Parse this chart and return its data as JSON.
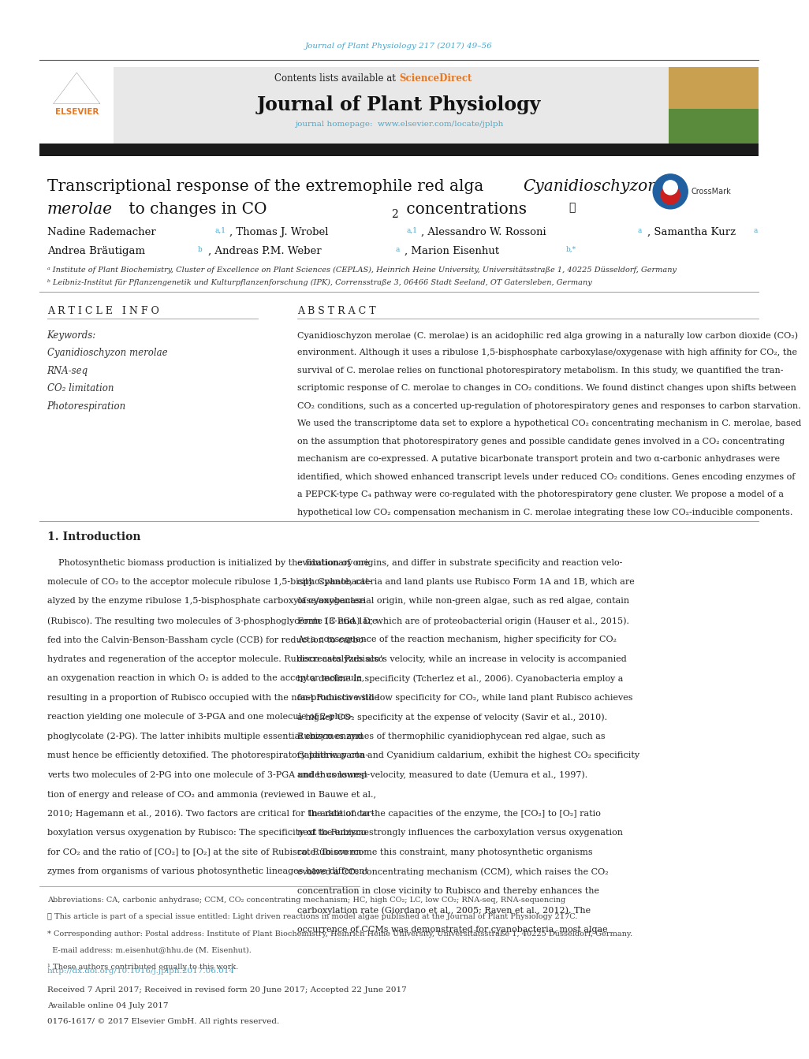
{
  "page_width": 9.92,
  "page_height": 13.23,
  "bg_color": "#ffffff",
  "journal_ref": "Journal of Plant Physiology 217 (2017) 49–56",
  "journal_ref_color": "#4da6c8",
  "header_bg": "#e8e8e8",
  "header_sciencedirect_color": "#e87722",
  "journal_name": "Journal of Plant Physiology",
  "journal_homepage_url": "www.elsevier.com/locate/jplph",
  "journal_homepage_color": "#4da6c8",
  "black_bar_color": "#1a1a1a",
  "keywords": [
    "Cyanidioschyzon merolae",
    "RNA-seq",
    "CO₂ limitation",
    "Photorespiration"
  ],
  "affil_a": "ᵃ Institute of Plant Biochemistry, Cluster of Excellence on Plant Sciences (CEPLAS), Heinrich Heine University, Universitätsstraße 1, 40225 Düsseldorf, Germany",
  "affil_b": "ᵇ Leibniz-Institut für Pflanzengenetik und Kulturpflanzenforschung (IPK), Corrensstraße 3, 06466 Stadt Seeland, OT Gatersleben, Germany",
  "doi_color": "#4da6c8",
  "doi": "http://dx.doi.org/10.1016/j.jplph.2017.06.014",
  "received_text": "Received 7 April 2017; Received in revised form 20 June 2017; Accepted 22 June 2017",
  "available_text": "Available online 04 July 2017",
  "copyright_text": "0176-1617/ © 2017 Elsevier GmbH. All rights reserved.",
  "abstract_lines": [
    "Cyanidioschyzon merolae (C. merolae) is an acidophilic red alga growing in a naturally low carbon dioxide (CO₂)",
    "environment. Although it uses a ribulose 1,5-bisphosphate carboxylase/oxygenase with high affinity for CO₂, the",
    "survival of C. merolae relies on functional photorespiratory metabolism. In this study, we quantified the tran-",
    "scriptomic response of C. merolae to changes in CO₂ conditions. We found distinct changes upon shifts between",
    "CO₂ conditions, such as a concerted up-regulation of photorespiratory genes and responses to carbon starvation.",
    "We used the transcriptome data set to explore a hypothetical CO₂ concentrating mechanism in C. merolae, based",
    "on the assumption that photorespiratory genes and possible candidate genes involved in a CO₂ concentrating",
    "mechanism are co-expressed. A putative bicarbonate transport protein and two α-carbonic anhydrases were",
    "identified, which showed enhanced transcript levels under reduced CO₂ conditions. Genes encoding enzymes of",
    "a PEPCK-type C₄ pathway were co-regulated with the photorespiratory gene cluster. We propose a model of a",
    "hypothetical low CO₂ compensation mechanism in C. merolae integrating these low CO₂-inducible components."
  ],
  "intro_col1_lines": [
    "    Photosynthetic biomass production is initialized by the fixation of one",
    "molecule of CO₂ to the acceptor molecule ribulose 1,5-bisphosphate, cat-",
    "alyzed by the enzyme ribulose 1,5-bisphosphate carboxylase/oxygenase",
    "(Rubisco). The resulting two molecules of 3-phosphoglycerate (3-PGA) are",
    "fed into the Calvin-Benson-Bassham cycle (CCB) for reduction to carbo-",
    "hydrates and regeneration of the acceptor molecule. Rubisco catalyzes also",
    "an oxygenation reaction in which O₂ is added to the acceptor molecule,",
    "resulting in a proportion of Rubisco occupied with the non-productive side",
    "reaction yielding one molecule of 3-PGA and one molecule of 2-phos-",
    "phoglycolate (2-PG). The latter inhibits multiple essential enzymes and",
    "must hence be efficiently detoxified. The photorespiratory pathway con-",
    "verts two molecules of 2-PG into one molecule of 3-PGA under consump-",
    "tion of energy and release of CO₂ and ammonia (reviewed in Bauwe et al.,",
    "2010; Hagemann et al., 2016). Two factors are critical for the rate of car-",
    "boxylation versus oxygenation by Rubisco: The specificity of the enzyme",
    "for CO₂ and the ratio of [CO₂] to [O₂] at the site of Rubisco. Rubisco en-",
    "zymes from organisms of various photosynthetic lineages have different"
  ],
  "intro_col2_lines": [
    "evolutionary origins, and differ in substrate specificity and reaction velo-",
    "city. Cyanobacteria and land plants use Rubisco Form 1A and 1B, which are",
    "of cyanobacterial origin, while non-green algae, such as red algae, contain",
    "Form 1C and 1D, which are of proteobacterial origin (Hauser et al., 2015).",
    "As a consequence of the reaction mechanism, higher specificity for CO₂",
    "decreases Rubisco’s velocity, while an increase in velocity is accompanied",
    "by a decline in specificity (Tcherlez et al., 2006). Cyanobacteria employ a",
    "fast Rubisco with low specificity for CO₂, while land plant Rubisco achieves",
    "a higher CO₂ specificity at the expense of velocity (Savir et al., 2010).",
    "Rubisco enzymes of thermophilic cyanidiophycean red algae, such as",
    "Galdieria parta and Cyanidium caldarium, exhibit the highest CO₂ specificity",
    "and thus lowest velocity, measured to date (Uemura et al., 1997).",
    "",
    "    In addition to the capacities of the enzyme, the [CO₂] to [O₂] ratio",
    "next to Rubisco strongly influences the carboxylation versus oxygenation",
    "rate. To overcome this constraint, many photosynthetic organisms",
    "evolved a CO₂ concentrating mechanism (CCM), which raises the CO₂",
    "concentration in close vicinity to Rubisco and thereby enhances the",
    "carboxylation rate (Giordano et al., 2005; Raven et al., 2012). The",
    "occurrence of CCMs was demonstrated for cyanobacteria, most algae"
  ],
  "footnote_lines": [
    "Abbreviations: CA, carbonic anhydrase; CCM, CO₂ concentrating mechanism; HC, high CO₂; LC, low CO₂; RNA-seq, RNA-sequencing",
    "★ This article is part of a special issue entitled: Light driven reactions in model algae published at the Journal of Plant Physiology 217C.",
    "* Corresponding author: Postal address: Institute of Plant Biochemistry, Heinrich Heine University, Universitätsstraße 1, 40225 Düsseldorf, Germany.",
    "  E-mail address: m.eisenhut@hhu.de (M. Eisenhut).",
    "¹ These authors contributed equally to this work."
  ]
}
